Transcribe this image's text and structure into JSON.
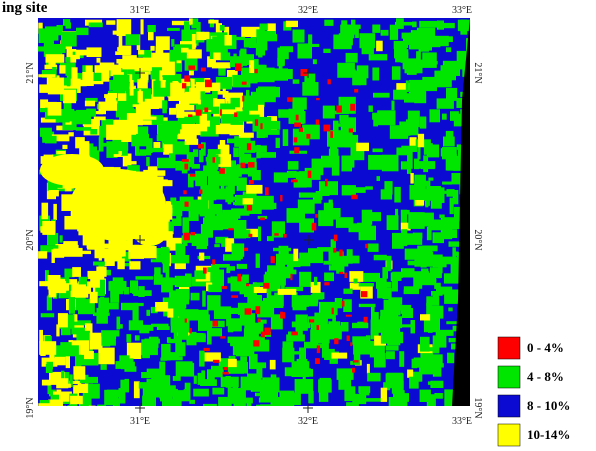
{
  "header": {
    "title": "ing site"
  },
  "map": {
    "lon_labels": [
      "31°E",
      "32°E",
      "33°E"
    ],
    "lat_labels": [
      "21°N",
      "20°N",
      "19°N"
    ]
  },
  "legend": {
    "items": [
      {
        "label": "0 - 4%",
        "color": "#ff0000"
      },
      {
        "label": "4 - 8%",
        "color": "#00e600"
      },
      {
        "label": "8 - 10%",
        "color": "#0a0ad2"
      },
      {
        "label": "10-14%",
        "color": "#ffff00"
      }
    ]
  }
}
